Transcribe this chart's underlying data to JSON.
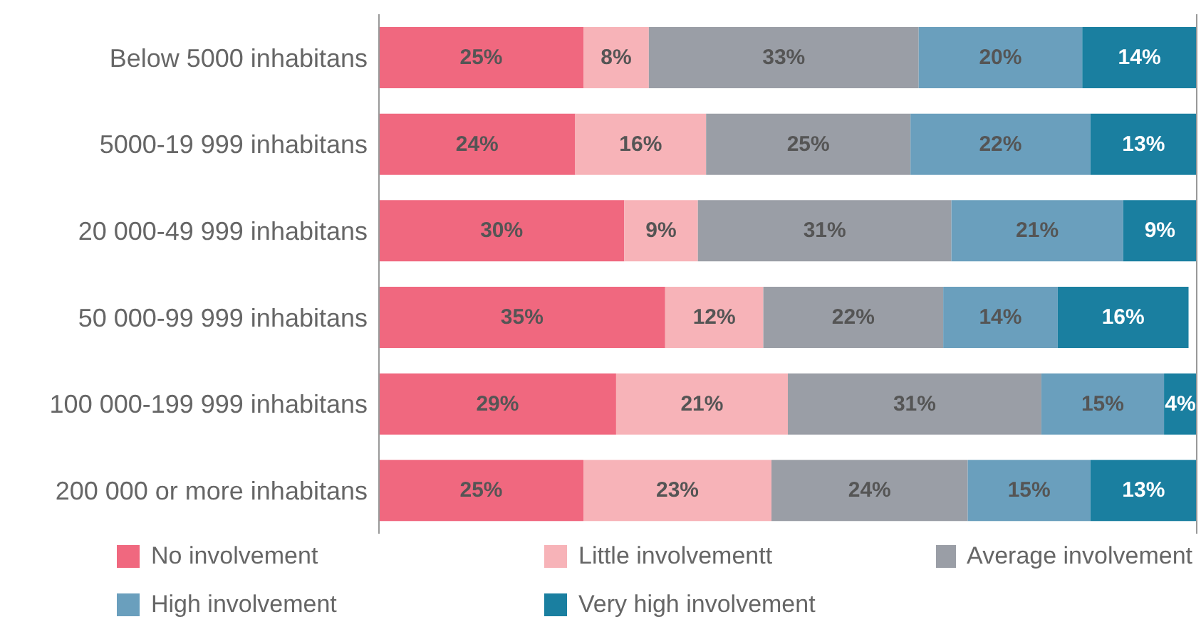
{
  "chart_data": {
    "type": "bar",
    "orientation": "horizontal",
    "stacked": true,
    "categories": [
      "Below 5000 inhabitans",
      "5000-19 999 inhabitans",
      "20 000-49 999 inhabitans",
      "50 000-99 999 inhabitans",
      "100 000-199 999 inhabitans",
      "200 000 or more inhabitans"
    ],
    "xlim": [
      0,
      100
    ],
    "tick_labels": "y",
    "legend": "bottom",
    "series": [
      {
        "name": "No involvement",
        "color": "#f0687f",
        "values": [
          25,
          24,
          30,
          35,
          29,
          25
        ],
        "value_labels": [
          "25%",
          "24%",
          "30%",
          "35%",
          "29%",
          "25%"
        ]
      },
      {
        "name": "Little involvementt",
        "color": "#f7b3b8",
        "values": [
          8,
          16,
          9,
          12,
          21,
          23
        ],
        "value_labels": [
          "8%",
          "16%",
          "9%",
          "12%",
          "21%",
          "23%"
        ]
      },
      {
        "name": "Average involvement",
        "color": "#9a9ea6",
        "values": [
          33,
          25,
          31,
          22,
          31,
          24
        ],
        "value_labels": [
          "33%",
          "25%",
          "31%",
          "22%",
          "31%",
          "24%"
        ]
      },
      {
        "name": "High involvement",
        "color": "#6a9fbd",
        "values": [
          20,
          22,
          21,
          14,
          15,
          15
        ],
        "value_labels": [
          "20%",
          "22%",
          "21%",
          "14%",
          "15%",
          "15%"
        ]
      },
      {
        "name": "Very high involvement",
        "color": "#1a7fa0",
        "values": [
          14,
          13,
          9,
          16,
          4,
          13
        ],
        "value_labels": [
          "14%",
          "13%",
          "9%",
          "16%",
          "4%",
          "13%"
        ]
      }
    ]
  }
}
